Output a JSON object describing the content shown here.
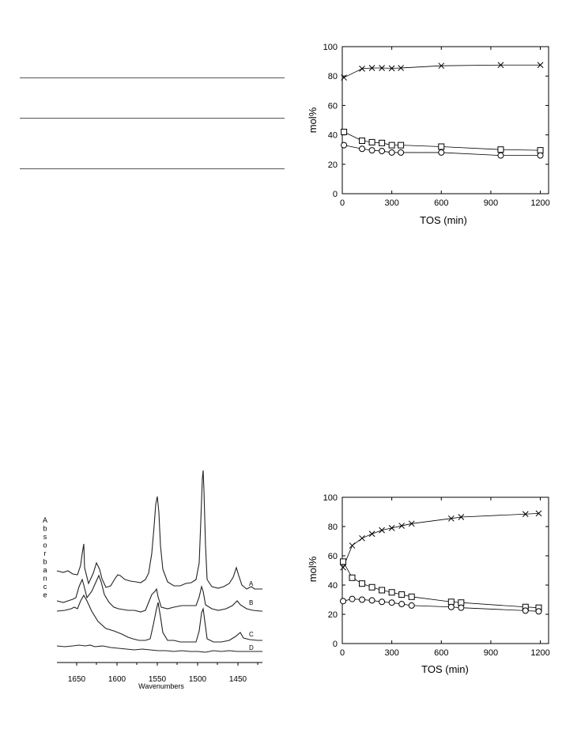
{
  "chart_data": [
    {
      "type": "line",
      "ylabel": "mol%",
      "xlabel": "TOS (min)",
      "xlim": [
        0,
        1250
      ],
      "ylim": [
        0,
        100
      ],
      "x_ticks": [
        "0",
        "300",
        "600",
        "900",
        "1200"
      ],
      "y_ticks": [
        "0",
        "20",
        "40",
        "60",
        "80",
        "100"
      ],
      "series": [
        {
          "marker": "x",
          "x": [
            10,
            120,
            180,
            240,
            300,
            355,
            600,
            960,
            1200
          ],
          "y": [
            79,
            85,
            85.5,
            85.5,
            85.3,
            85.5,
            87,
            87.5,
            87.5
          ]
        },
        {
          "marker": "square",
          "x": [
            10,
            120,
            180,
            240,
            300,
            355,
            600,
            960,
            1200
          ],
          "y": [
            42,
            36,
            35,
            34.5,
            33,
            33,
            32,
            30,
            29.5
          ]
        },
        {
          "marker": "circle",
          "x": [
            10,
            120,
            180,
            240,
            300,
            355,
            600,
            960,
            1200
          ],
          "y": [
            33,
            30.5,
            29.5,
            29,
            28,
            28,
            28,
            26,
            26
          ]
        }
      ]
    },
    {
      "type": "line",
      "ylabel": "Absorbance",
      "xlabel": "Wavenumbers",
      "x_ticks": [
        "1650",
        "1600",
        "1550",
        "1500",
        "1450"
      ],
      "trace_labels": [
        "A",
        "B",
        "C",
        "D"
      ]
    },
    {
      "type": "line",
      "ylabel": "mol%",
      "xlabel": "TOS (min)",
      "xlim": [
        0,
        1250
      ],
      "ylim": [
        0,
        100
      ],
      "x_ticks": [
        "0",
        "300",
        "600",
        "900",
        "1200"
      ],
      "y_ticks": [
        "0",
        "20",
        "40",
        "60",
        "80",
        "100"
      ],
      "series": [
        {
          "marker": "x",
          "x": [
            5,
            60,
            120,
            180,
            240,
            300,
            360,
            420,
            660,
            720,
            1110,
            1190
          ],
          "y": [
            52,
            67,
            72,
            75,
            77.5,
            79,
            80.5,
            82,
            85.5,
            86.5,
            88.5,
            89
          ]
        },
        {
          "marker": "square",
          "x": [
            5,
            60,
            120,
            180,
            240,
            300,
            360,
            420,
            660,
            720,
            1110,
            1190
          ],
          "y": [
            56,
            45,
            41,
            38.5,
            36.5,
            35,
            33.5,
            32,
            28.5,
            28,
            25,
            24.5
          ]
        },
        {
          "marker": "circle",
          "x": [
            5,
            60,
            120,
            180,
            240,
            300,
            360,
            420,
            660,
            720,
            1110,
            1190
          ],
          "y": [
            29,
            30.5,
            30,
            29.5,
            28.5,
            28,
            27,
            26,
            25,
            24.5,
            22.5,
            22
          ]
        }
      ]
    }
  ]
}
